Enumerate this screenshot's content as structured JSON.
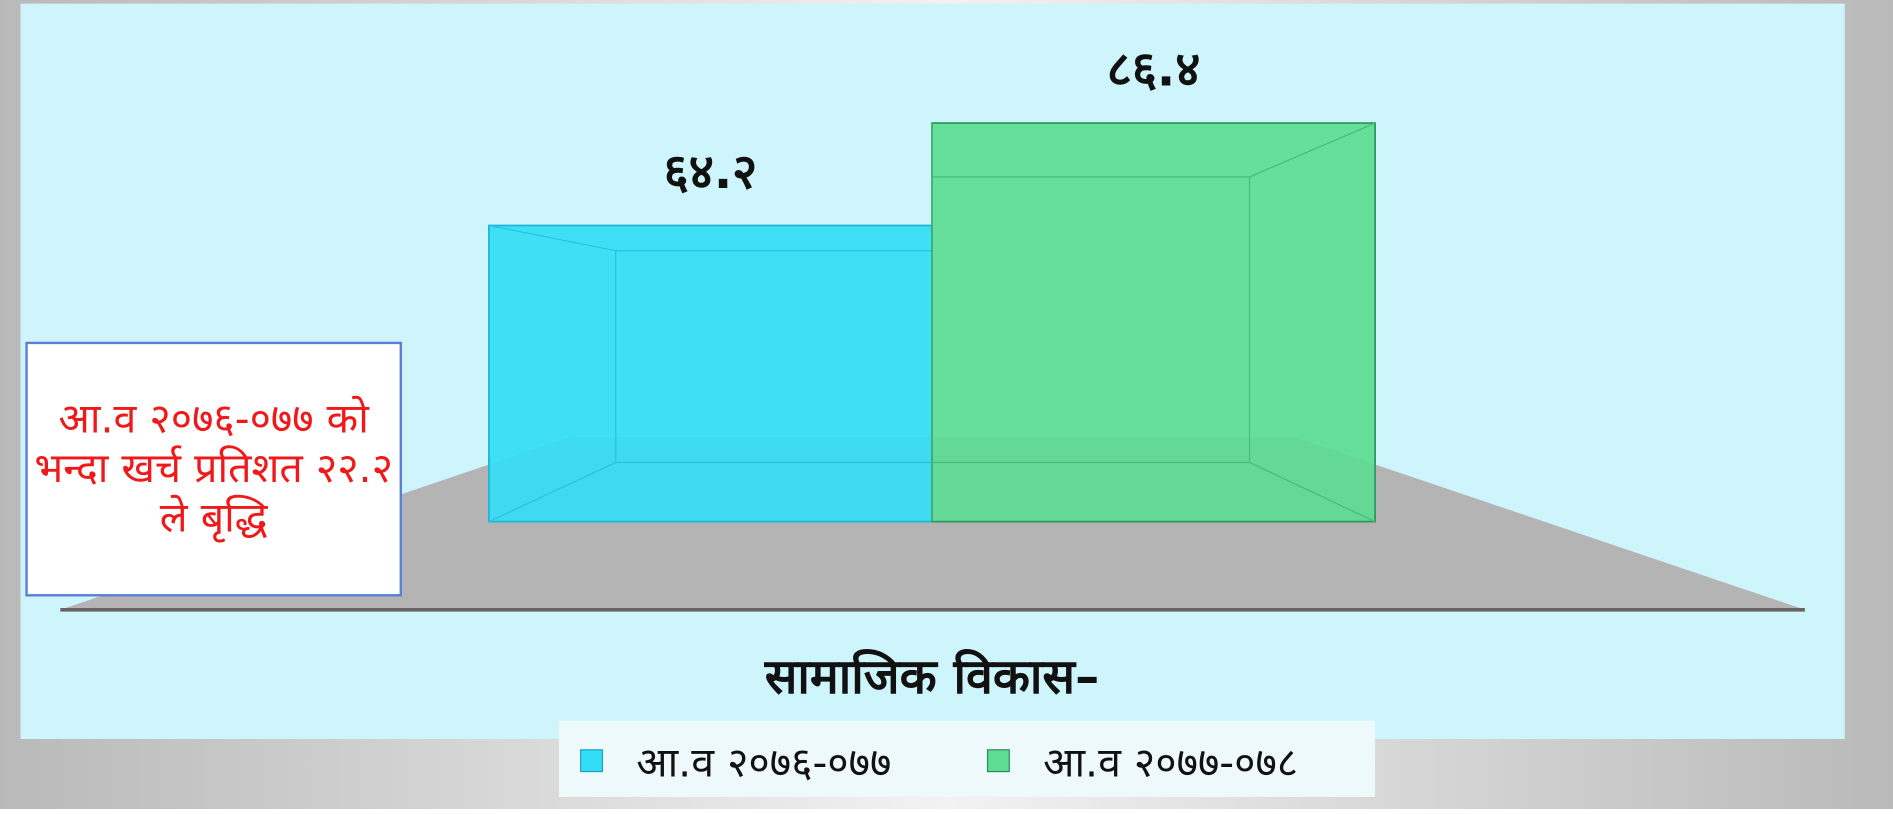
{
  "chart_data": {
    "type": "bar",
    "categories": [
      "सामाजिक विकास–"
    ],
    "series": [
      {
        "name": "आ.व २०७६-०७७",
        "color": "#33ddf5",
        "values": [
          64.2
        ],
        "value_labels": [
          "६४.२"
        ]
      },
      {
        "name": "आ.व २०७७-०७८",
        "color": "#5ddc93",
        "values": [
          86.4
        ],
        "value_labels": [
          "८६.४"
        ]
      }
    ],
    "annotation": "आ.व २०७६-०७७ को भन्दा खर्च प्रतिशत २२.२ ले बृद्धि"
  }
}
